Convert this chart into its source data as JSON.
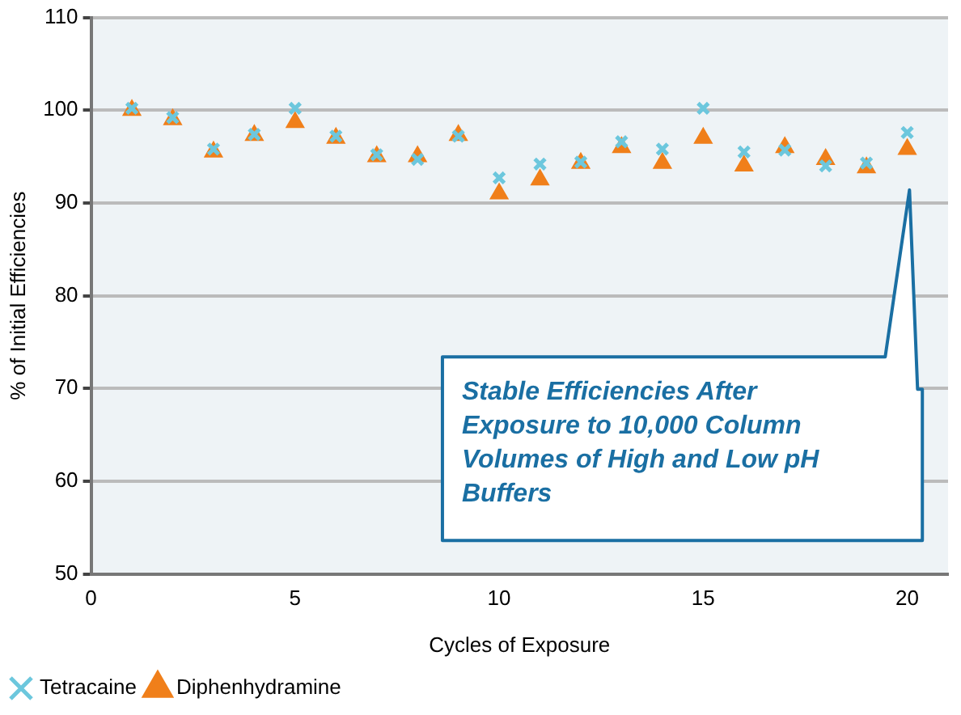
{
  "chart_data": {
    "type": "scatter",
    "xlabel": "Cycles of Exposure",
    "ylabel": "% of Initial Efficiencies",
    "x": [
      1,
      2,
      3,
      4,
      5,
      6,
      7,
      8,
      9,
      10,
      11,
      12,
      13,
      14,
      15,
      16,
      17,
      18,
      19,
      20
    ],
    "series": [
      {
        "name": "Diphenhydramine",
        "color": "#f07f1a",
        "marker": "triangle",
        "values": [
          100,
          99,
          95.5,
          97.3,
          98.7,
          97,
          95,
          95,
          97.3,
          91,
          92.5,
          94.3,
          96,
          94.3,
          97,
          94,
          96,
          94.7,
          93.8,
          95.8
        ]
      },
      {
        "name": "Tetracaine",
        "color": "#6cc7dd",
        "marker": "cross",
        "values": [
          100.2,
          99.2,
          95.8,
          97.4,
          100.2,
          97.2,
          95.2,
          94.7,
          97.2,
          92.7,
          94.2,
          94.4,
          96.6,
          95.8,
          100.2,
          95.5,
          95.7,
          94,
          94.3,
          97.6
        ]
      }
    ],
    "xlim": [
      0,
      21
    ],
    "xticks": [
      0,
      5,
      10,
      15,
      20
    ],
    "ylim": [
      50,
      110
    ],
    "yticks": [
      50,
      60,
      70,
      80,
      90,
      100,
      110
    ],
    "grid": "y",
    "legend": "bottom left",
    "annotations": [
      "Stable Efficiencies After Exposure to 10,000 Column Volumes of High and Low pH Buffers"
    ]
  }
}
